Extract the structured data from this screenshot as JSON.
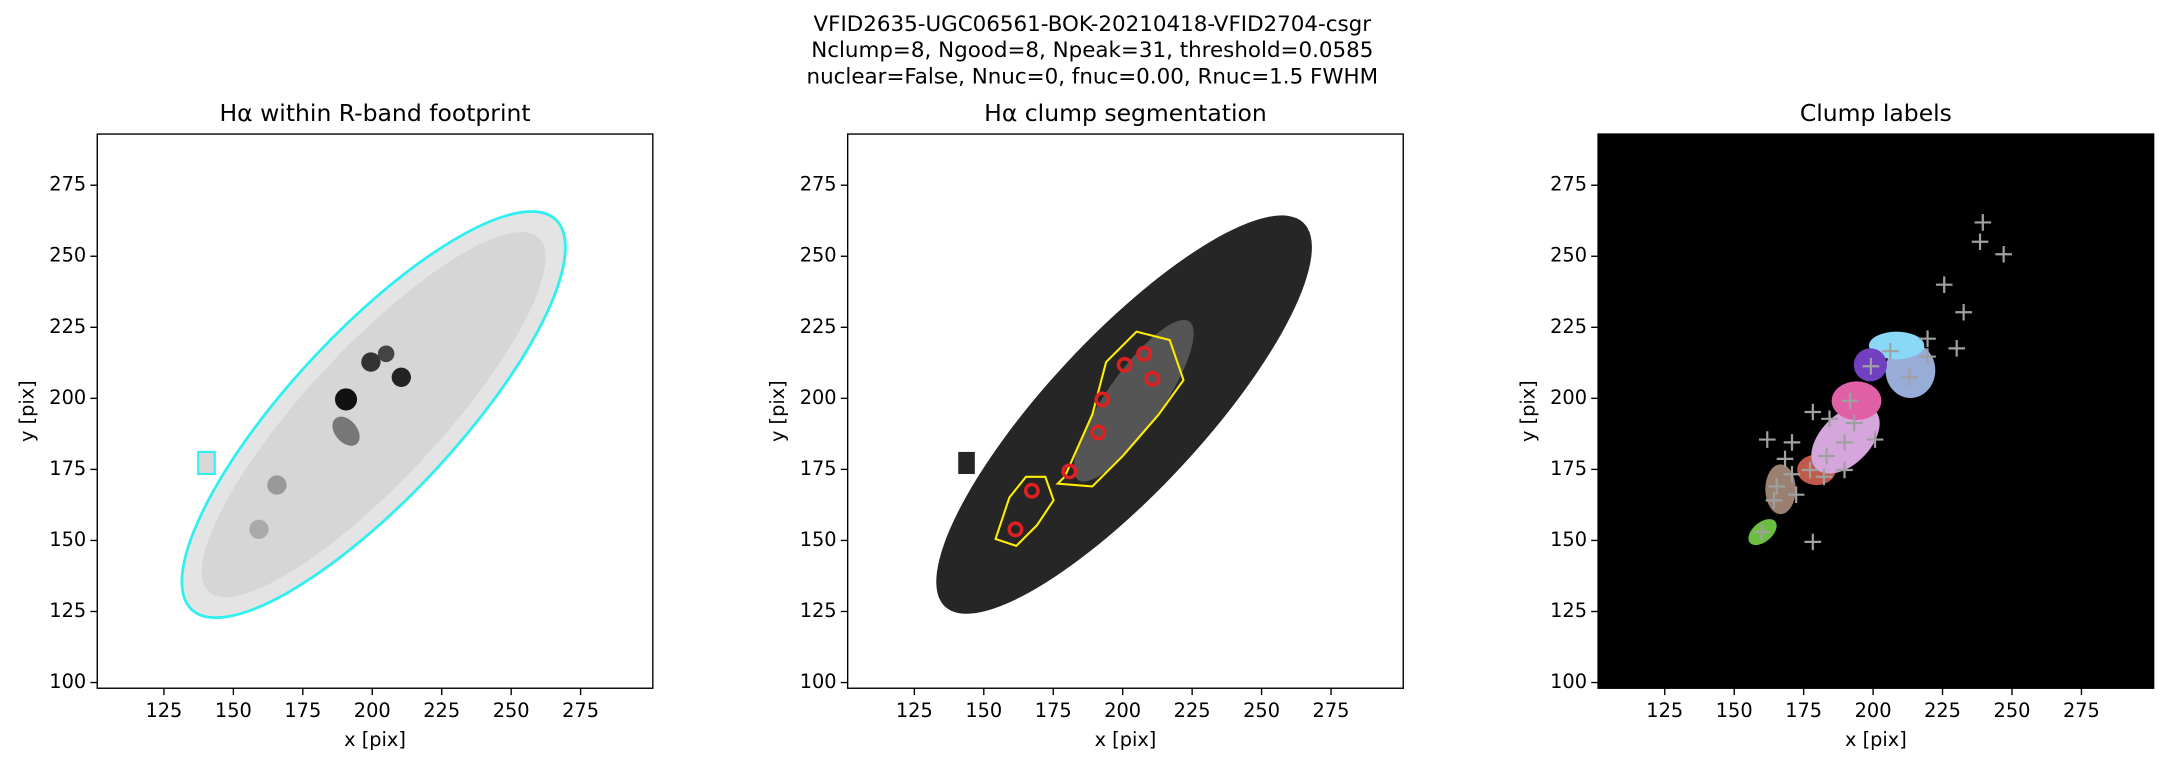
{
  "suptitle": [
    "VFID2635-UGC06561-BOK-20210418-VFID2704-csgr",
    "Nclump=8, Ngood=8, Npeak=31, threshold=0.0585",
    "nuclear=False, Nnuc=0, fnuc=0.00, Rnuc=1.5 FWHM"
  ],
  "chart_data": [
    {
      "type": "image",
      "title": "Hα within R-band footprint",
      "xlabel": "x [pix]",
      "ylabel": "y [pix]",
      "xlim": [
        101,
        301
      ],
      "ylim": [
        98,
        293
      ],
      "xticks": [
        125,
        150,
        175,
        200,
        225,
        250,
        275
      ],
      "yticks": [
        100,
        125,
        150,
        175,
        200,
        225,
        250,
        275
      ]
    },
    {
      "type": "image",
      "title": "Hα clump segmentation",
      "xlabel": "x [pix]",
      "ylabel": "y [pix]",
      "xlim": [
        101,
        301
      ],
      "ylim": [
        98,
        293
      ],
      "xticks": [
        125,
        150,
        175,
        200,
        225,
        250,
        275
      ],
      "yticks": [
        100,
        125,
        150,
        175,
        200,
        225,
        250,
        275
      ],
      "x": [
        161.4,
        167.3,
        180.8,
        191.2,
        192.7,
        200.7,
        207.7,
        210.7
      ],
      "y": [
        153.9,
        167.5,
        174.3,
        188.0,
        199.6,
        211.8,
        215.7,
        206.9
      ],
      "marker_color": "#e02020"
    },
    {
      "type": "image",
      "title": "Clump labels",
      "xlabel": "x [pix]",
      "ylabel": "y [pix]",
      "xlim": [
        101,
        301
      ],
      "ylim": [
        98,
        293
      ],
      "xticks": [
        125,
        150,
        175,
        200,
        225,
        250,
        275
      ],
      "yticks": [
        100,
        125,
        150,
        175,
        200,
        225,
        250,
        275
      ],
      "x": [
        239.5,
        238.5,
        247,
        225.6,
        232.6,
        230.1,
        219.6,
        219.6,
        213.1,
        199.2,
        206.2,
        191.7,
        184.3,
        193.2,
        178.3,
        200.7,
        183.3,
        189.7,
        189.7,
        177.3,
        182.3,
        161.9,
        170.8,
        168.3,
        165.3,
        172.3,
        164.3,
        178.3,
        159.9,
        170.8
      ],
      "y": [
        261.9,
        255.1,
        250.7,
        240,
        230.3,
        217.6,
        221,
        214.7,
        207.4,
        211.3,
        216.6,
        199.1,
        192.8,
        191.3,
        195.2,
        185.5,
        179.7,
        184.5,
        174.8,
        174.8,
        172.4,
        185.5,
        184.5,
        178.7,
        169,
        166.1,
        164.1,
        149.5,
        152.9,
        173.3
      ],
      "marker_color": "#a0a0a0"
    }
  ]
}
